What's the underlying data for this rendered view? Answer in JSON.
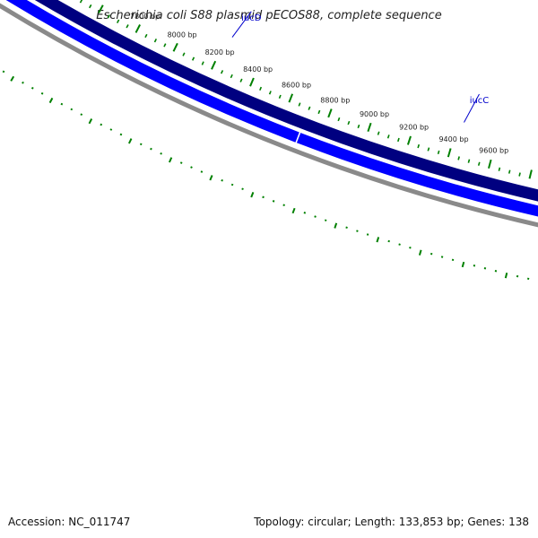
{
  "title": "Escherichia coli S88 plasmid pECOS88, complete sequence",
  "footer": {
    "accession": "Accession: NC_011747",
    "summary": "Topology: circular; Length: 133,853 bp; Genes: 138"
  },
  "colors": {
    "backbone": "#8a8a8a",
    "forward_gene": "#0000ff",
    "reverse_track": "#000080",
    "tick": "#008000",
    "gene_label": "#0000cc"
  },
  "ruler_labels": [
    {
      "bp": 7800,
      "text": "7800 bp"
    },
    {
      "bp": 8000,
      "text": "8000 bp"
    },
    {
      "bp": 8200,
      "text": "8200 bp"
    },
    {
      "bp": 8400,
      "text": "8400 bp"
    },
    {
      "bp": 8600,
      "text": "8600 bp"
    },
    {
      "bp": 8800,
      "text": "8800 bp"
    },
    {
      "bp": 9000,
      "text": "9000 bp"
    },
    {
      "bp": 9200,
      "text": "9200 bp"
    },
    {
      "bp": 9400,
      "text": "9400 bp"
    },
    {
      "bp": 9600,
      "text": "9600 bp"
    }
  ],
  "genes": [
    {
      "name": "iucD",
      "strand": "forward",
      "end_bp": 8700
    },
    {
      "name": "iucC",
      "strand": "forward",
      "start_bp": 8700
    }
  ],
  "gene_labels": [
    {
      "text": "iucD",
      "bp": 8200
    },
    {
      "text": "iucC",
      "bp": 9400
    }
  ]
}
